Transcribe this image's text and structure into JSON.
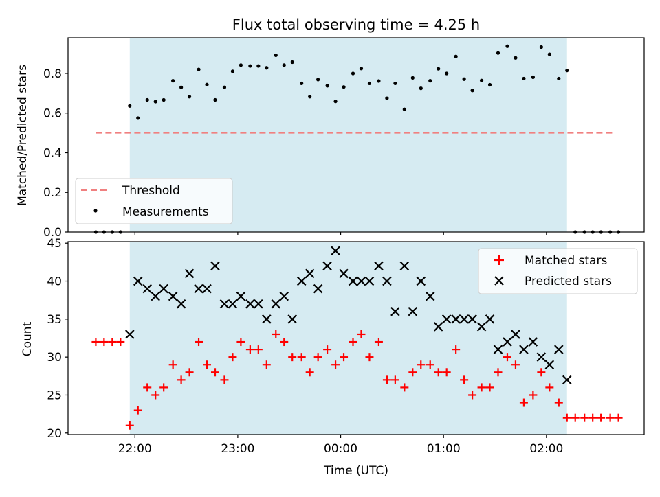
{
  "chart_data": {
    "title": "Flux total observing time = 4.25 h",
    "xlabel": "Time (UTC)",
    "x_ticks": [
      {
        "t": 0.0,
        "label": "22:00"
      },
      {
        "t": 1.0,
        "label": "23:00"
      },
      {
        "t": 2.0,
        "label": "00:00"
      },
      {
        "t": 3.0,
        "label": "01:00"
      },
      {
        "t": 4.0,
        "label": "02:00"
      }
    ],
    "x_range": [
      -0.65,
      4.95
    ],
    "shaded_span": [
      -0.05,
      4.2
    ],
    "top": {
      "type": "scatter",
      "ylabel": "Matched/Predicted stars",
      "ylim": [
        0.0,
        0.98
      ],
      "y_ticks": [
        "0.0",
        "0.2",
        "0.4",
        "0.6",
        "0.8"
      ],
      "threshold": {
        "name": "Threshold",
        "value": 0.5,
        "x_range": [
          -0.38,
          4.67
        ]
      },
      "measurements_name": "Measurements",
      "legend_position": "lower-left"
    },
    "bottom": {
      "type": "scatter",
      "ylabel": "Count",
      "ylim": [
        19.8,
        45.2
      ],
      "y_ticks": [
        "20",
        "25",
        "30",
        "35",
        "40",
        "45"
      ],
      "legend_position": "upper-right",
      "series": [
        {
          "name": "Matched stars",
          "color": "#ff0000",
          "points": [
            [
              -0.38,
              32
            ],
            [
              -0.3,
              32
            ],
            [
              -0.22,
              32
            ],
            [
              -0.14,
              32
            ],
            [
              -0.05,
              21
            ],
            [
              0.03,
              23
            ],
            [
              0.12,
              26
            ],
            [
              0.2,
              25
            ],
            [
              0.28,
              26
            ],
            [
              0.37,
              29
            ],
            [
              0.45,
              27
            ],
            [
              0.53,
              28
            ],
            [
              0.62,
              32
            ],
            [
              0.7,
              29
            ],
            [
              0.78,
              28
            ],
            [
              0.87,
              27
            ],
            [
              0.95,
              30
            ],
            [
              1.03,
              32
            ],
            [
              1.12,
              31
            ],
            [
              1.2,
              31
            ],
            [
              1.28,
              29
            ],
            [
              1.37,
              33
            ],
            [
              1.45,
              32
            ],
            [
              1.53,
              30
            ],
            [
              1.62,
              30
            ],
            [
              1.7,
              28
            ],
            [
              1.78,
              30
            ],
            [
              1.87,
              31
            ],
            [
              1.95,
              29
            ],
            [
              2.03,
              30
            ],
            [
              2.12,
              32
            ],
            [
              2.2,
              33
            ],
            [
              2.28,
              30
            ],
            [
              2.37,
              32
            ],
            [
              2.45,
              27
            ],
            [
              2.53,
              27
            ],
            [
              2.62,
              26
            ],
            [
              2.7,
              28
            ],
            [
              2.78,
              29
            ],
            [
              2.87,
              29
            ],
            [
              2.95,
              28
            ],
            [
              3.03,
              28
            ],
            [
              3.12,
              31
            ],
            [
              3.2,
              27
            ],
            [
              3.28,
              25
            ],
            [
              3.37,
              26
            ],
            [
              3.45,
              26
            ],
            [
              3.53,
              28
            ],
            [
              3.62,
              30
            ],
            [
              3.7,
              29
            ],
            [
              3.78,
              24
            ],
            [
              3.87,
              25
            ],
            [
              3.95,
              28
            ],
            [
              4.03,
              26
            ],
            [
              4.12,
              24
            ],
            [
              4.2,
              22
            ],
            [
              4.28,
              22
            ],
            [
              4.37,
              22
            ],
            [
              4.45,
              22
            ],
            [
              4.53,
              22
            ],
            [
              4.62,
              22
            ],
            [
              4.7,
              22
            ]
          ]
        },
        {
          "name": "Predicted stars",
          "color": "#000000",
          "points": [
            [
              -0.05,
              33
            ],
            [
              0.03,
              40
            ],
            [
              0.12,
              39
            ],
            [
              0.2,
              38
            ],
            [
              0.28,
              39
            ],
            [
              0.37,
              38
            ],
            [
              0.45,
              37
            ],
            [
              0.53,
              41
            ],
            [
              0.62,
              39
            ],
            [
              0.7,
              39
            ],
            [
              0.78,
              42
            ],
            [
              0.87,
              37
            ],
            [
              0.95,
              37
            ],
            [
              1.03,
              38
            ],
            [
              1.12,
              37
            ],
            [
              1.2,
              37
            ],
            [
              1.28,
              35
            ],
            [
              1.37,
              37
            ],
            [
              1.45,
              38
            ],
            [
              1.53,
              35
            ],
            [
              1.62,
              40
            ],
            [
              1.7,
              41
            ],
            [
              1.78,
              39
            ],
            [
              1.87,
              42
            ],
            [
              1.95,
              44
            ],
            [
              2.03,
              41
            ],
            [
              2.12,
              40
            ],
            [
              2.2,
              40
            ],
            [
              2.28,
              40
            ],
            [
              2.37,
              42
            ],
            [
              2.45,
              40
            ],
            [
              2.53,
              36
            ],
            [
              2.62,
              42
            ],
            [
              2.7,
              36
            ],
            [
              2.78,
              40
            ],
            [
              2.87,
              38
            ],
            [
              2.95,
              34
            ],
            [
              3.03,
              35
            ],
            [
              3.12,
              35
            ],
            [
              3.2,
              35
            ],
            [
              3.28,
              35
            ],
            [
              3.37,
              34
            ],
            [
              3.45,
              35
            ],
            [
              3.53,
              31
            ],
            [
              3.62,
              32
            ],
            [
              3.7,
              33
            ],
            [
              3.78,
              31
            ],
            [
              3.87,
              32
            ],
            [
              3.95,
              30
            ],
            [
              4.03,
              29
            ],
            [
              4.12,
              31
            ],
            [
              4.2,
              27
            ]
          ]
        }
      ]
    }
  }
}
